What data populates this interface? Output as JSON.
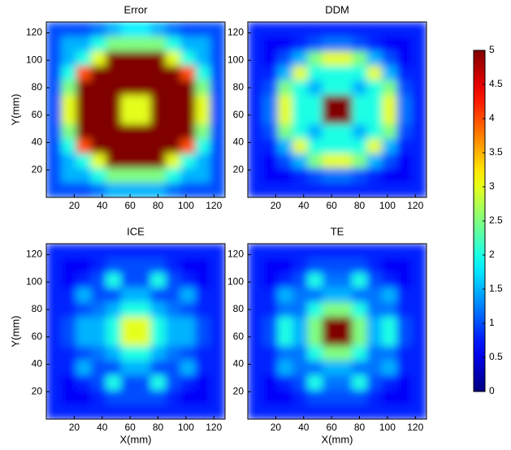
{
  "chart_data": [
    {
      "type": "heatmap",
      "title": "Error",
      "ylabel": "Y(mm)",
      "xlim": [
        0,
        128
      ],
      "ylim": [
        0,
        128
      ],
      "xticks": [
        20,
        40,
        60,
        80,
        100,
        120
      ],
      "yticks": [
        20,
        40,
        60,
        80,
        100,
        120
      ],
      "z": [
        [
          1,
          1,
          1,
          1.2,
          1.5,
          1.8,
          1.8,
          1.5,
          1.2,
          1,
          1,
          1
        ],
        [
          1,
          1.5,
          1.5,
          2,
          2.5,
          2.5,
          2.5,
          2.5,
          2,
          1.5,
          1.5,
          1
        ],
        [
          1,
          1.5,
          2,
          3,
          5,
          5,
          5,
          5,
          3,
          2,
          1.5,
          1
        ],
        [
          1,
          2,
          4,
          5,
          5,
          5,
          5,
          5,
          5,
          4,
          2,
          1
        ],
        [
          1,
          2.5,
          5,
          5,
          5,
          5,
          5,
          5,
          5,
          5,
          2.5,
          1
        ],
        [
          1,
          3,
          5,
          5,
          5,
          3,
          3,
          5,
          5,
          5,
          3,
          1
        ],
        [
          1,
          3,
          5,
          5,
          5,
          3,
          3,
          5,
          5,
          5,
          3,
          1
        ],
        [
          1,
          2.5,
          5,
          5,
          5,
          5,
          5,
          5,
          5,
          5,
          2.5,
          1
        ],
        [
          1,
          2,
          4,
          5,
          5,
          5,
          5,
          5,
          5,
          4,
          2,
          1
        ],
        [
          1,
          1.5,
          2,
          3,
          5,
          5,
          5,
          5,
          3,
          2,
          1.5,
          1
        ],
        [
          1,
          1.5,
          1.5,
          2,
          2.5,
          2.5,
          2.5,
          2.5,
          2,
          1.5,
          1.5,
          1
        ],
        [
          1,
          1,
          1,
          1.2,
          1.5,
          1.5,
          1.5,
          1.5,
          1.2,
          1,
          1,
          1
        ]
      ]
    },
    {
      "type": "heatmap",
      "title": "DDM",
      "xlim": [
        0,
        128
      ],
      "ylim": [
        0,
        128
      ],
      "xticks": [
        20,
        40,
        60,
        80,
        100,
        120
      ],
      "yticks": [
        20,
        40,
        60,
        80,
        100,
        120
      ],
      "z": [
        [
          0.8,
          0.8,
          0.8,
          0.8,
          0.8,
          0.8,
          0.8,
          0.8,
          0.8,
          0.8,
          0.8,
          0.8
        ],
        [
          0.8,
          0.6,
          0.6,
          0.8,
          1,
          1.2,
          1.2,
          1,
          0.8,
          0.6,
          0.6,
          0.8
        ],
        [
          0.8,
          0.6,
          1,
          1.5,
          2.5,
          3,
          3,
          2.5,
          1.5,
          1,
          0.6,
          0.8
        ],
        [
          0.8,
          0.8,
          1.5,
          3,
          2,
          2,
          2,
          2,
          3,
          1.5,
          0.8,
          0.8
        ],
        [
          0.8,
          1,
          2.5,
          2,
          1.5,
          2,
          2,
          1.5,
          2,
          2.5,
          1,
          0.8
        ],
        [
          0.8,
          1.2,
          3,
          2,
          2,
          5,
          5,
          2,
          2,
          3,
          1.2,
          0.8
        ],
        [
          0.8,
          1.2,
          3,
          2,
          2,
          5,
          5,
          2,
          2,
          3,
          1.2,
          0.8
        ],
        [
          0.8,
          1,
          2.5,
          2,
          1.5,
          2,
          2,
          1.5,
          2,
          2.5,
          1,
          0.8
        ],
        [
          0.8,
          0.8,
          1.5,
          3,
          2,
          2,
          2,
          2,
          3,
          1.5,
          0.8,
          0.8
        ],
        [
          0.8,
          0.6,
          1,
          1.5,
          2.5,
          3,
          3,
          2.5,
          1.5,
          1,
          0.6,
          0.8
        ],
        [
          0.8,
          0.6,
          0.6,
          0.8,
          1,
          1.2,
          1.2,
          1,
          0.8,
          0.6,
          0.6,
          0.8
        ],
        [
          0.8,
          0.8,
          0.8,
          0.8,
          0.8,
          0.8,
          0.8,
          0.8,
          0.8,
          0.8,
          0.8,
          0.8
        ]
      ]
    },
    {
      "type": "heatmap",
      "title": "ICE",
      "xlabel": "X(mm)",
      "ylabel": "Y(mm)",
      "xlim": [
        0,
        128
      ],
      "ylim": [
        0,
        128
      ],
      "xticks": [
        20,
        40,
        60,
        80,
        100,
        120
      ],
      "yticks": [
        20,
        40,
        60,
        80,
        100,
        120
      ],
      "z": [
        [
          0.8,
          0.8,
          0.8,
          0.8,
          0.8,
          0.8,
          0.8,
          0.8,
          0.8,
          0.8,
          0.8,
          0.8
        ],
        [
          0.8,
          0.6,
          0.6,
          0.8,
          1,
          1,
          1,
          1,
          0.8,
          0.6,
          0.6,
          0.8
        ],
        [
          0.8,
          0.6,
          0.8,
          1,
          2,
          1,
          1,
          2,
          1,
          0.8,
          0.6,
          0.8
        ],
        [
          0.8,
          0.8,
          1.5,
          1,
          1,
          1.5,
          1.5,
          1,
          1,
          1.5,
          0.8,
          0.8
        ],
        [
          0.8,
          0.8,
          1,
          1.2,
          1.5,
          2,
          2,
          1.5,
          1.2,
          1,
          0.8,
          0.8
        ],
        [
          0.8,
          1,
          1.5,
          1.5,
          2,
          3,
          3,
          2,
          1.5,
          1.5,
          1,
          0.8
        ],
        [
          0.8,
          1,
          1.5,
          1.5,
          2,
          3,
          3,
          2,
          1.5,
          1.5,
          1,
          0.8
        ],
        [
          0.8,
          0.8,
          1,
          1.2,
          1.5,
          2,
          2,
          1.5,
          1.2,
          1,
          0.8,
          0.8
        ],
        [
          0.8,
          0.8,
          1.5,
          1,
          1,
          1.5,
          1.5,
          1,
          1,
          1.5,
          0.8,
          0.8
        ],
        [
          0.8,
          0.6,
          0.8,
          1,
          2,
          1,
          1,
          2,
          1,
          0.8,
          0.6,
          0.8
        ],
        [
          0.8,
          0.6,
          0.6,
          0.8,
          1,
          1,
          1,
          1,
          0.8,
          0.6,
          0.6,
          0.8
        ],
        [
          0.8,
          0.8,
          0.8,
          0.8,
          0.8,
          0.8,
          0.8,
          0.8,
          0.8,
          0.8,
          0.8,
          0.8
        ]
      ]
    },
    {
      "type": "heatmap",
      "title": "TE",
      "xlabel": "X(mm)",
      "xlim": [
        0,
        128
      ],
      "ylim": [
        0,
        128
      ],
      "xticks": [
        20,
        40,
        60,
        80,
        100,
        120
      ],
      "yticks": [
        20,
        40,
        60,
        80,
        100,
        120
      ],
      "z": [
        [
          0.8,
          0.8,
          0.8,
          0.8,
          0.8,
          0.8,
          0.8,
          0.8,
          0.8,
          0.8,
          0.8,
          0.8
        ],
        [
          0.8,
          0.6,
          0.6,
          0.8,
          1,
          1,
          1,
          1,
          0.8,
          0.6,
          0.6,
          0.8
        ],
        [
          0.8,
          0.6,
          0.8,
          1,
          2,
          1.2,
          1.2,
          2,
          1,
          0.8,
          0.6,
          0.8
        ],
        [
          0.8,
          0.8,
          1.5,
          1.2,
          1.2,
          1.5,
          1.5,
          1.2,
          1.2,
          1.5,
          0.8,
          0.8
        ],
        [
          0.8,
          0.8,
          1.2,
          1.2,
          2,
          2.5,
          2.5,
          2,
          1.2,
          1.2,
          0.8,
          0.8
        ],
        [
          0.8,
          1,
          2,
          1.5,
          2.5,
          5,
          5,
          2.5,
          1.5,
          2,
          1,
          0.8
        ],
        [
          0.8,
          1,
          2,
          1.5,
          2.5,
          5,
          5,
          2.5,
          1.5,
          2,
          1,
          0.8
        ],
        [
          0.8,
          0.8,
          1.2,
          1.2,
          2,
          2.5,
          2.5,
          2,
          1.2,
          1.2,
          0.8,
          0.8
        ],
        [
          0.8,
          0.8,
          1.5,
          1.2,
          1.2,
          1.5,
          1.5,
          1.2,
          1.2,
          1.5,
          0.8,
          0.8
        ],
        [
          0.8,
          0.6,
          0.8,
          1,
          2,
          1.2,
          1.2,
          2,
          1,
          0.8,
          0.6,
          0.8
        ],
        [
          0.8,
          0.6,
          0.6,
          0.8,
          1,
          1,
          1,
          1,
          0.8,
          0.6,
          0.6,
          0.8
        ],
        [
          0.8,
          0.8,
          0.8,
          0.8,
          0.8,
          0.8,
          0.8,
          0.8,
          0.8,
          0.8,
          0.8,
          0.8
        ]
      ]
    }
  ],
  "colorbar": {
    "colormap": "jet",
    "lim": [
      0,
      5
    ],
    "ticks": [
      0,
      0.5,
      1,
      1.5,
      2,
      2.5,
      3,
      3.5,
      4,
      4.5,
      5
    ]
  }
}
